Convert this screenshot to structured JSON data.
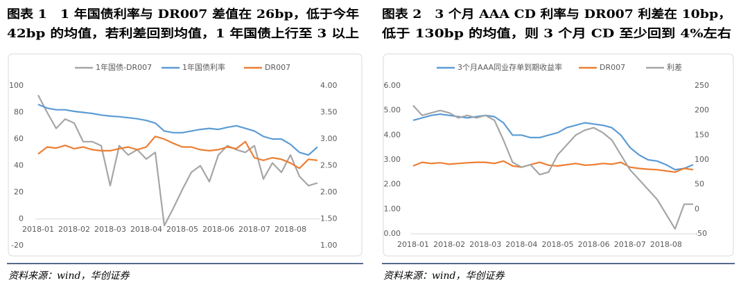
{
  "chart_data": [
    {
      "type": "line",
      "title": [
        "图表 1　1 年国债利率与 DR007 差值在 26bp，低于今年",
        "42bp 的均值，若利差回到均值，1 年国债上行至 3 以上"
      ],
      "source": "资料来源：wind，华创证券",
      "categories": [
        "2018-01",
        null,
        null,
        null,
        "2018-02",
        null,
        null,
        null,
        "2018-03",
        null,
        null,
        null,
        "2018-04",
        null,
        null,
        null,
        "2018-05",
        null,
        null,
        null,
        "2018-06",
        null,
        null,
        null,
        "2018-07",
        null,
        null,
        null,
        "2018-08",
        null,
        null,
        null
      ],
      "series": [
        {
          "name": "1年国债-DR007",
          "color": "#a5a5a5",
          "axis": "y",
          "values": [
            93,
            80,
            68,
            75,
            72,
            58,
            58,
            55,
            25,
            55,
            48,
            52,
            45,
            50,
            -5,
            8,
            22,
            35,
            40,
            28,
            48,
            55,
            52,
            50,
            55,
            30,
            42,
            35,
            48,
            32,
            25,
            27
          ]
        },
        {
          "name": "1年国债利率",
          "color": "#5b9bd5",
          "axis": "y2",
          "values": [
            3.65,
            3.58,
            3.55,
            3.55,
            3.52,
            3.5,
            3.48,
            3.45,
            3.43,
            3.42,
            3.4,
            3.38,
            3.35,
            3.3,
            3.15,
            3.12,
            3.12,
            3.15,
            3.18,
            3.2,
            3.18,
            3.22,
            3.25,
            3.2,
            3.15,
            3.05,
            3.0,
            3.0,
            2.9,
            2.75,
            2.7,
            2.85
          ]
        },
        {
          "name": "DR007",
          "color": "#ed7d31",
          "axis": "y2",
          "values": [
            2.72,
            2.85,
            2.83,
            2.88,
            2.82,
            2.85,
            2.8,
            2.78,
            2.78,
            2.82,
            2.85,
            2.8,
            2.85,
            3.05,
            3.0,
            2.92,
            2.85,
            2.85,
            2.8,
            2.78,
            2.8,
            2.85,
            2.82,
            2.95,
            2.65,
            2.6,
            2.65,
            2.62,
            2.55,
            2.45,
            2.62,
            2.6
          ]
        }
      ],
      "ylim": [
        -20,
        100
      ],
      "yticks": [
        -20,
        0,
        20,
        40,
        60,
        80,
        100
      ],
      "y2lim": [
        1,
        4
      ],
      "y2ticks": [
        {
          "value": 1,
          "label": "1.00"
        },
        {
          "value": 1.5,
          "label": "1.50"
        },
        {
          "value": 2,
          "label": "2.00"
        },
        {
          "value": 2.5,
          "label": "2.50"
        },
        {
          "value": 3,
          "label": "3.00"
        },
        {
          "value": 3.5,
          "label": "3.50"
        },
        {
          "value": 4,
          "label": "4.00"
        }
      ],
      "grid": false,
      "legend": "top"
    },
    {
      "type": "line",
      "title": [
        "图表 2　3 个月 AAA CD 利率与 DR007 利差在 10bp，",
        "低于 130bp 的均值，则 3 个月 CD 至少回到 4%左右"
      ],
      "source": "资料来源：wind，华创证券",
      "categories": [
        "2018-01",
        null,
        null,
        null,
        "2018-02",
        null,
        null,
        null,
        "2018-03",
        null,
        null,
        null,
        "2018-04",
        null,
        null,
        null,
        "2018-05",
        null,
        null,
        null,
        "2018-06",
        null,
        null,
        null,
        "2018-07",
        null,
        null,
        null,
        "2018-08",
        null,
        null,
        null
      ],
      "series": [
        {
          "name": "3个月AAA同业存单到期收益率",
          "color": "#5b9bd5",
          "axis": "y",
          "values": [
            4.6,
            4.7,
            4.8,
            4.85,
            4.8,
            4.75,
            4.7,
            4.75,
            4.8,
            4.75,
            4.5,
            4.0,
            4.0,
            3.9,
            3.9,
            4.0,
            4.1,
            4.3,
            4.4,
            4.5,
            4.45,
            4.4,
            4.3,
            4.0,
            3.5,
            3.2,
            3.0,
            2.95,
            2.8,
            2.6,
            2.65,
            2.8
          ]
        },
        {
          "name": "DR007",
          "color": "#ed7d31",
          "axis": "y",
          "values": [
            2.75,
            2.9,
            2.85,
            2.88,
            2.82,
            2.85,
            2.88,
            2.9,
            2.9,
            2.85,
            2.95,
            2.75,
            2.7,
            2.8,
            2.9,
            2.78,
            2.75,
            2.8,
            2.85,
            2.78,
            2.8,
            2.85,
            2.82,
            2.9,
            2.7,
            2.65,
            2.62,
            2.6,
            2.55,
            2.5,
            2.65,
            2.6
          ]
        },
        {
          "name": "利差",
          "color": "#a5a5a5",
          "axis": "y2",
          "values": [
            210,
            190,
            195,
            200,
            195,
            185,
            190,
            185,
            190,
            180,
            140,
            95,
            85,
            90,
            70,
            75,
            110,
            130,
            150,
            160,
            165,
            155,
            140,
            110,
            80,
            60,
            40,
            20,
            -10,
            -40,
            10,
            10
          ]
        }
      ],
      "ylim": [
        0,
        6
      ],
      "yticks": [
        {
          "value": 0,
          "label": "0.00"
        },
        {
          "value": 1,
          "label": "1.00"
        },
        {
          "value": 2,
          "label": "2.00"
        },
        {
          "value": 3,
          "label": "3.00"
        },
        {
          "value": 4,
          "label": "4.00"
        },
        {
          "value": 5,
          "label": "5.00"
        },
        {
          "value": 6,
          "label": "6.00"
        }
      ],
      "y2lim": [
        -50,
        250
      ],
      "y2ticks": [
        -50,
        0,
        50,
        100,
        150,
        200,
        250
      ],
      "grid": false,
      "legend": "top"
    }
  ]
}
